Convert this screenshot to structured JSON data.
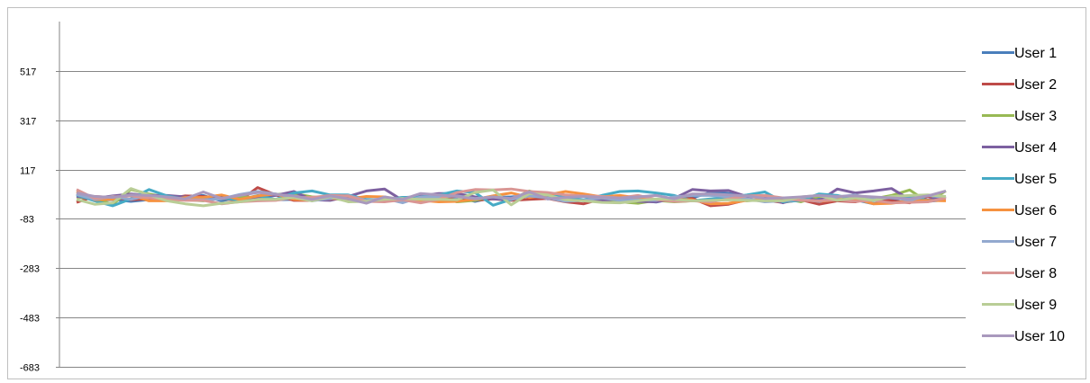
{
  "chart_data": {
    "type": "line",
    "title": "",
    "xlabel": "",
    "ylabel": "",
    "ylim": [
      -683,
      717
    ],
    "yticks": [
      -683,
      -483,
      -283,
      -83,
      117,
      317,
      517
    ],
    "grid": true,
    "legend_position": "right",
    "x": [
      1,
      2,
      3,
      4,
      5,
      6,
      7,
      8,
      9,
      10,
      11,
      12,
      13,
      14,
      15,
      16,
      17,
      18,
      19,
      20,
      21,
      22,
      23,
      24,
      25,
      26,
      27,
      28,
      29,
      30,
      31,
      32,
      33,
      34,
      35,
      36,
      37,
      38,
      39,
      40,
      41,
      42,
      43,
      44,
      45,
      46,
      47,
      48,
      49
    ],
    "series": [
      {
        "name": "User 1",
        "color": "#4a7ebb",
        "values": [
          18,
          -8,
          -5,
          -12,
          -5,
          -2,
          8,
          12,
          -10,
          4,
          0,
          -6,
          -4,
          5,
          -1,
          8,
          -12,
          -2,
          4,
          6,
          0,
          6,
          -12,
          4,
          6,
          10,
          -2,
          2,
          -10,
          5,
          0,
          -8,
          -15,
          0,
          2,
          24,
          20,
          8,
          4,
          -5,
          0,
          -2,
          -8,
          -6,
          -22,
          -8,
          6,
          -12,
          -6
        ]
      },
      {
        "name": "User 2",
        "color": "#be4b48",
        "values": [
          -16,
          8,
          4,
          -6,
          -2,
          -2,
          10,
          8,
          -1,
          -10,
          44,
          14,
          -8,
          -8,
          12,
          8,
          -12,
          -6,
          0,
          -12,
          -4,
          10,
          -8,
          -2,
          -8,
          -4,
          0,
          -14,
          -22,
          -2,
          -16,
          -2,
          -8,
          -4,
          0,
          -30,
          -24,
          -6,
          -8,
          -16,
          -6,
          -24,
          -10,
          -14,
          2,
          -10,
          -18,
          8,
          -2
        ]
      },
      {
        "name": "User 3",
        "color": "#98b954",
        "values": [
          6,
          -2,
          -24,
          36,
          18,
          4,
          -6,
          -10,
          2,
          6,
          4,
          16,
          20,
          6,
          2,
          -10,
          -8,
          -12,
          -4,
          -2,
          6,
          -14,
          -8,
          10,
          -6,
          30,
          10,
          -12,
          14,
          -6,
          -14,
          -20,
          -8,
          -14,
          -10,
          -8,
          0,
          -10,
          -6,
          0,
          -14,
          8,
          -4,
          -2,
          -2,
          12,
          34,
          -14,
          30
        ]
      },
      {
        "name": "User 4",
        "color": "#7d60a0",
        "values": [
          8,
          0,
          10,
          18,
          12,
          12,
          6,
          -6,
          6,
          -6,
          6,
          12,
          28,
          -6,
          -8,
          8,
          30,
          38,
          -8,
          10,
          20,
          20,
          6,
          -2,
          -6,
          24,
          8,
          2,
          12,
          -10,
          0,
          -12,
          -14,
          0,
          36,
          30,
          32,
          8,
          4,
          -18,
          6,
          -10,
          38,
          22,
          30,
          40,
          -4,
          -6,
          8
        ]
      },
      {
        "name": "User 5",
        "color": "#46aac5",
        "values": [
          14,
          -10,
          -30,
          -2,
          36,
          10,
          -4,
          -8,
          0,
          -6,
          12,
          -4,
          22,
          30,
          14,
          14,
          -4,
          -6,
          4,
          6,
          14,
          30,
          24,
          -28,
          -4,
          20,
          14,
          4,
          -6,
          12,
          28,
          30,
          22,
          12,
          -10,
          -2,
          4,
          14,
          26,
          -14,
          -8,
          18,
          12,
          -4,
          -10,
          8,
          6,
          -8,
          -8
        ]
      },
      {
        "name": "User 6",
        "color": "#f69240",
        "values": [
          28,
          -6,
          -4,
          14,
          -10,
          -10,
          4,
          4,
          14,
          -4,
          10,
          18,
          -4,
          -8,
          0,
          -2,
          8,
          6,
          -10,
          -8,
          -14,
          -12,
          -4,
          10,
          22,
          4,
          14,
          28,
          18,
          6,
          12,
          2,
          -6,
          -4,
          -6,
          -22,
          -20,
          -8,
          -2,
          -10,
          -4,
          -12,
          -6,
          -2,
          -22,
          -20,
          -10,
          -8,
          -10
        ]
      },
      {
        "name": "User 7",
        "color": "#93a9cf",
        "values": [
          16,
          -4,
          8,
          -4,
          12,
          -6,
          -6,
          -6,
          -2,
          16,
          28,
          18,
          4,
          -10,
          0,
          12,
          -8,
          0,
          -18,
          6,
          6,
          10,
          0,
          6,
          -4,
          10,
          2,
          -12,
          -8,
          2,
          -8,
          -6,
          -8,
          6,
          12,
          12,
          6,
          -2,
          -14,
          -10,
          -4,
          -12,
          6,
          14,
          -4,
          4,
          -8,
          12,
          4
        ]
      },
      {
        "name": "User 8",
        "color": "#d99694",
        "values": [
          36,
          0,
          6,
          10,
          2,
          -4,
          -8,
          -8,
          -22,
          -14,
          -10,
          -8,
          4,
          4,
          12,
          10,
          -12,
          -14,
          -6,
          -18,
          -4,
          24,
          36,
          34,
          38,
          28,
          24,
          14,
          10,
          8,
          2,
          12,
          -4,
          -12,
          -10,
          -14,
          -2,
          10,
          12,
          2,
          -8,
          -10,
          -6,
          -12,
          -8,
          -18,
          -16,
          -14,
          2
        ]
      },
      {
        "name": "User 9",
        "color": "#b9cd96",
        "values": [
          -4,
          -24,
          -18,
          40,
          14,
          -10,
          -22,
          -30,
          -20,
          -14,
          -4,
          -4,
          4,
          -10,
          8,
          -14,
          -12,
          -4,
          0,
          -4,
          -4,
          -6,
          24,
          34,
          -26,
          20,
          14,
          -6,
          -10,
          -16,
          -18,
          -10,
          -2,
          -4,
          -10,
          -8,
          -6,
          -8,
          -10,
          -10,
          6,
          12,
          -8,
          2,
          -8,
          8,
          12,
          14,
          8
        ]
      },
      {
        "name": "User 10",
        "color": "#a999bd",
        "values": [
          22,
          8,
          4,
          14,
          12,
          6,
          -2,
          26,
          0,
          12,
          24,
          16,
          10,
          -4,
          10,
          -2,
          -20,
          6,
          -4,
          20,
          14,
          8,
          -2,
          6,
          0,
          26,
          -2,
          4,
          8,
          4,
          2,
          6,
          12,
          -2,
          18,
          18,
          14,
          10,
          0,
          2,
          6,
          12,
          8,
          10,
          6,
          2,
          -2,
          10,
          30
        ]
      }
    ]
  }
}
